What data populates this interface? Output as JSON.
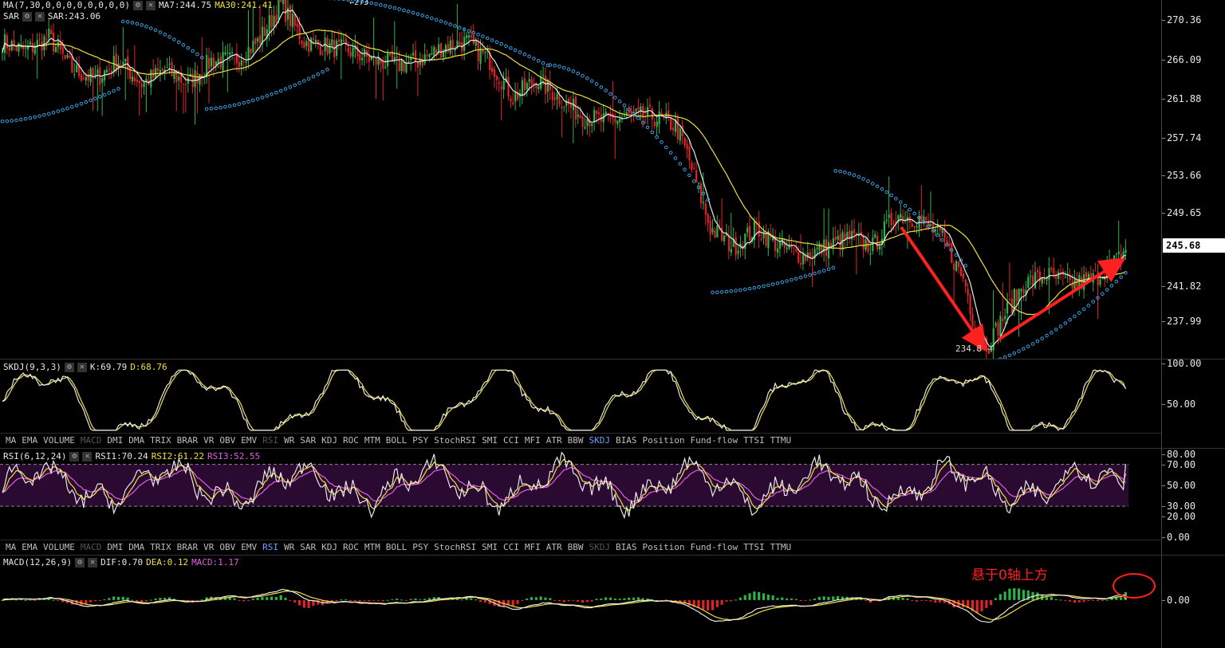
{
  "main": {
    "ma_header": {
      "name": "MA(7,30,0,0,0,0,0,0,0,0)",
      "ma7": "MA7:244.75",
      "ma30": "MA30:241.41"
    },
    "sar_header": {
      "sar": "SAR:243.06"
    },
    "min_label": "234.8 →",
    "top_label": "←273",
    "last_price": "245.68"
  },
  "skdj": {
    "header": "SKDJ(9,3,3)",
    "k": "K:69.79",
    "d": "D:68.76"
  },
  "rsi": {
    "header": "RSI(6,12,24)",
    "rsi1": "RSI1:70.24",
    "rsi2": "RSI2:61.22",
    "rsi3": "RSI3:52.55"
  },
  "macd": {
    "header": "MACD(12,26,9)",
    "dif": "DIF:0.70",
    "dea": "DEA:0.12",
    "macd": "MACD:1.17",
    "annotation": "悬于0轴上方"
  },
  "indicator_tabs_1": [
    {
      "label": "MA"
    },
    {
      "label": "EMA"
    },
    {
      "label": "VOLUME"
    },
    {
      "label": "MACD",
      "state": "dim"
    },
    {
      "label": "DMI"
    },
    {
      "label": "DMA"
    },
    {
      "label": "TRIX"
    },
    {
      "label": "BRAR"
    },
    {
      "label": "VR"
    },
    {
      "label": "OBV"
    },
    {
      "label": "EMV"
    },
    {
      "label": "RSI",
      "state": "dim"
    },
    {
      "label": "WR"
    },
    {
      "label": "SAR"
    },
    {
      "label": "KDJ"
    },
    {
      "label": "ROC"
    },
    {
      "label": "MTM"
    },
    {
      "label": "BOLL"
    },
    {
      "label": "PSY"
    },
    {
      "label": "StochRSI"
    },
    {
      "label": "SMI"
    },
    {
      "label": "CCI"
    },
    {
      "label": "MFI"
    },
    {
      "label": "ATR"
    },
    {
      "label": "BBW"
    },
    {
      "label": "SKDJ",
      "state": "act"
    },
    {
      "label": "BIAS"
    },
    {
      "label": "Position"
    },
    {
      "label": "Fund-flow"
    },
    {
      "label": "TTSI"
    },
    {
      "label": "TTMU"
    }
  ],
  "indicator_tabs_2": [
    {
      "label": "MA"
    },
    {
      "label": "EMA"
    },
    {
      "label": "VOLUME"
    },
    {
      "label": "MACD",
      "state": "dim"
    },
    {
      "label": "DMI"
    },
    {
      "label": "DMA"
    },
    {
      "label": "TRIX"
    },
    {
      "label": "BRAR"
    },
    {
      "label": "VR"
    },
    {
      "label": "OBV"
    },
    {
      "label": "EMV"
    },
    {
      "label": "RSI",
      "state": "act"
    },
    {
      "label": "WR"
    },
    {
      "label": "SAR"
    },
    {
      "label": "KDJ"
    },
    {
      "label": "ROC"
    },
    {
      "label": "MTM"
    },
    {
      "label": "BOLL"
    },
    {
      "label": "PSY"
    },
    {
      "label": "StochRSI"
    },
    {
      "label": "SMI"
    },
    {
      "label": "CCI"
    },
    {
      "label": "MFI"
    },
    {
      "label": "ATR"
    },
    {
      "label": "BBW"
    },
    {
      "label": "SKDJ",
      "state": "dim"
    },
    {
      "label": "BIAS"
    },
    {
      "label": "Position"
    },
    {
      "label": "Fund-flow"
    },
    {
      "label": "TTSI"
    },
    {
      "label": "TTMU"
    }
  ],
  "colors": {
    "up": "#2fb24a",
    "down": "#e0232b",
    "ma7": "#e8e8e8",
    "ma30": "#f0e040",
    "sar": "#3aa0e0",
    "rsi3": "#e060e0",
    "annotation": "#ff2020",
    "rsi_band": "#2a0a30"
  },
  "chart_data": [
    {
      "type": "candlestick",
      "yticks": [
        237.99,
        241.82,
        245.65,
        249.65,
        253.66,
        257.74,
        261.88,
        266.09,
        270.36
      ],
      "ylim": [
        234.0,
        272.5
      ],
      "last": 245.68,
      "min": 234.8,
      "anchors_close": [
        [
          0,
          268
        ],
        [
          10,
          267
        ],
        [
          20,
          268.5
        ],
        [
          30,
          265
        ],
        [
          40,
          264
        ],
        [
          50,
          266
        ],
        [
          60,
          263.5
        ],
        [
          70,
          265
        ],
        [
          80,
          263.5
        ],
        [
          90,
          266
        ],
        [
          100,
          266
        ],
        [
          110,
          268
        ],
        [
          120,
          272
        ],
        [
          130,
          268
        ],
        [
          140,
          267.5
        ],
        [
          150,
          267
        ],
        [
          160,
          266
        ],
        [
          170,
          265.5
        ],
        [
          180,
          266
        ],
        [
          190,
          267.5
        ],
        [
          200,
          268
        ],
        [
          210,
          266
        ],
        [
          220,
          262
        ],
        [
          230,
          264
        ],
        [
          240,
          262
        ],
        [
          250,
          260
        ],
        [
          260,
          259.5
        ],
        [
          270,
          260
        ],
        [
          280,
          260
        ],
        [
          290,
          259
        ],
        [
          295,
          256
        ],
        [
          305,
          248
        ],
        [
          315,
          246
        ],
        [
          325,
          248
        ],
        [
          335,
          246
        ],
        [
          345,
          245
        ],
        [
          355,
          246
        ],
        [
          365,
          247
        ],
        [
          375,
          246
        ],
        [
          385,
          249.5
        ],
        [
          395,
          249
        ],
        [
          405,
          247
        ],
        [
          415,
          242
        ],
        [
          420,
          236
        ],
        [
          425,
          235.5
        ],
        [
          430,
          238
        ],
        [
          440,
          242
        ],
        [
          450,
          243
        ],
        [
          460,
          242
        ],
        [
          470,
          242.5
        ],
        [
          480,
          244.5
        ],
        [
          484,
          245.68
        ]
      ],
      "sar_segments": [
        [
          0,
          51,
          "below"
        ],
        [
          52,
          87,
          "above"
        ],
        [
          88,
          140,
          "below"
        ],
        [
          141,
          235,
          "above"
        ],
        [
          236,
          305,
          "above"
        ],
        [
          306,
          358,
          "below"
        ],
        [
          359,
          415,
          "above"
        ],
        [
          416,
          484,
          "below"
        ]
      ]
    },
    {
      "type": "line",
      "name": "SKDJ",
      "yticks": [
        50.0,
        100.0
      ],
      "ylim": [
        15,
        105
      ]
    },
    {
      "type": "line",
      "name": "RSI",
      "yticks": [
        0.0,
        20.0,
        30.0,
        50.0,
        70.0,
        80.0
      ],
      "ylim": [
        -2,
        85
      ],
      "band": [
        30,
        70
      ]
    },
    {
      "type": "bar",
      "name": "MACD",
      "yticks": [
        0.0
      ],
      "ylim": [
        -7,
        6.5
      ]
    }
  ]
}
